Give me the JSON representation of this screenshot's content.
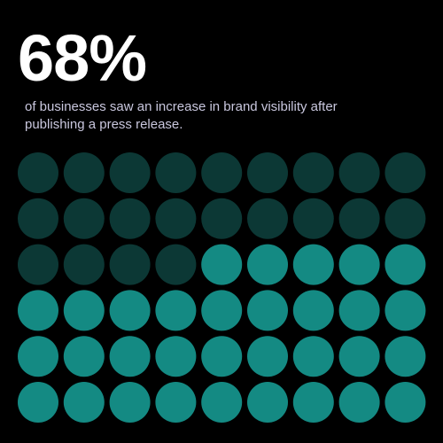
{
  "headline": "68%",
  "description": [
    "of businesses saw an increase in brand visibility after",
    "publishing a press release."
  ]
}
